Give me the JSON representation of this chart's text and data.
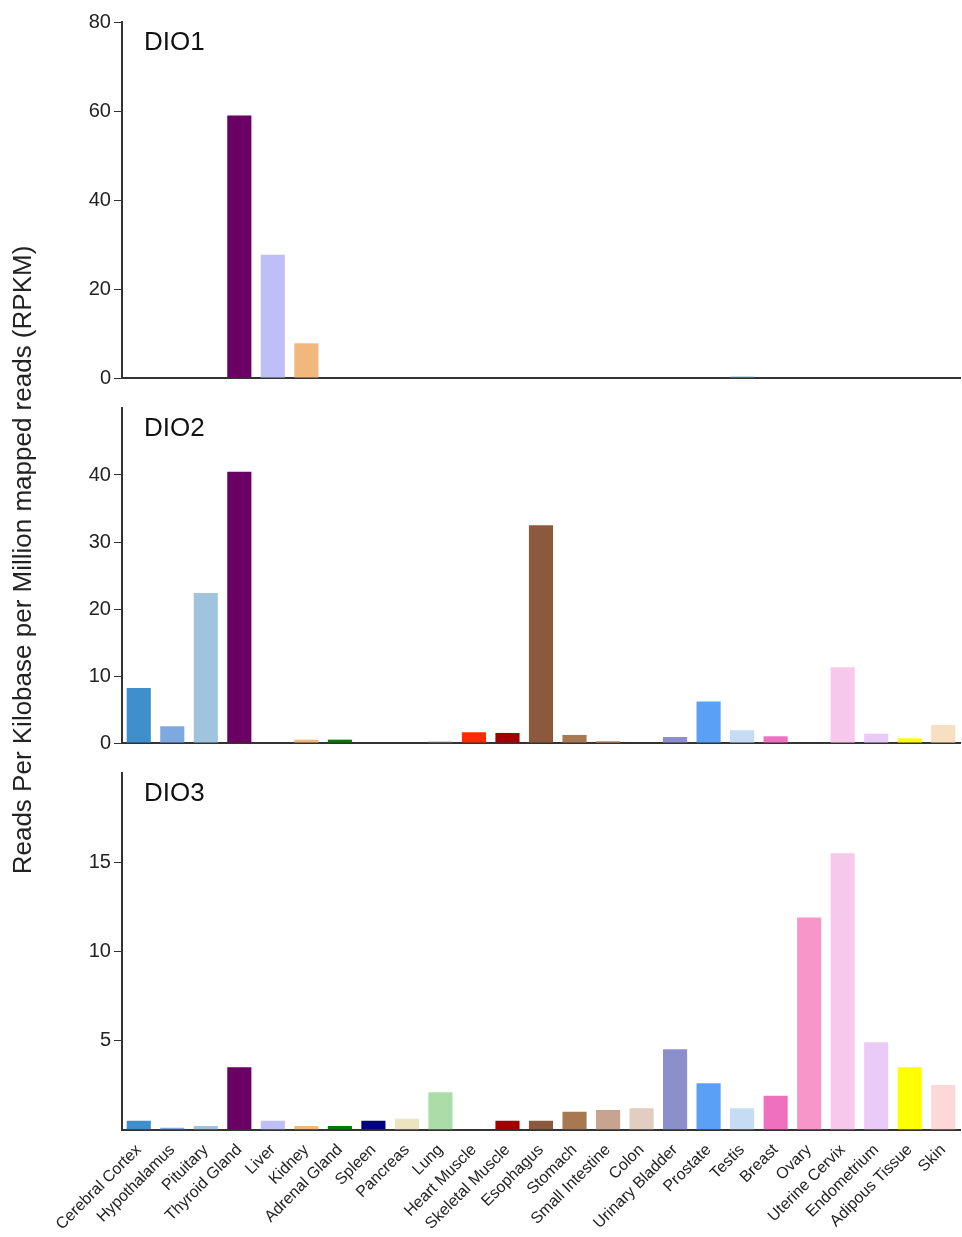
{
  "chart_data": [
    {
      "type": "bar",
      "title": "DIO1",
      "categories": [
        "Cerebral Cortex",
        "Hypothalamus",
        "Pituitary",
        "Thyroid Gland",
        "Liver",
        "Kidney",
        "Adrenal Gland",
        "Spleen",
        "Pancreas",
        "Lung",
        "Heart Muscle",
        "Skeletal Muscle",
        "Esophagus",
        "Stomach",
        "Small Intestine",
        "Colon",
        "Urinary Bladder",
        "Prostate",
        "Testis",
        "Breast",
        "Ovary",
        "Uterine Cervix",
        "Endometrium",
        "Adipous Tissue",
        "Skin"
      ],
      "values": [
        0,
        0,
        0,
        59,
        27.7,
        7.8,
        0,
        0,
        0,
        0,
        0,
        0,
        0,
        0,
        0,
        0,
        0,
        0,
        0.3,
        0.2,
        0,
        0,
        0,
        0,
        0
      ],
      "colors": [
        "#3f8fcc",
        "#7ea9e0",
        "#a0c4de",
        "#6a0064",
        "#bfbff7",
        "#f0b87c",
        "#007a00",
        "#000080",
        "#ece4c0",
        "#acdca8",
        "#ff2a00",
        "#a00000",
        "#8b5a3c",
        "#a87850",
        "#c8a490",
        "#e2cec0",
        "#8c8fcc",
        "#5aa0f7",
        "#5a90d0",
        "#303030",
        "#f796c8",
        "#f8c8ec",
        "#eccaf7",
        "#ffff00",
        "#f7dfc0"
      ],
      "ylim": [
        0,
        80
      ],
      "yticks": [
        0,
        20,
        40,
        60,
        80
      ],
      "tick_labels": "y"
    },
    {
      "type": "bar",
      "title": "DIO2",
      "ylabel": "Reads Per Kilobase per Million mapped reads (RPKM)",
      "categories": [
        "Cerebral Cortex",
        "Hypothalamus",
        "Pituitary",
        "Thyroid Gland",
        "Liver",
        "Kidney",
        "Adrenal Gland",
        "Spleen",
        "Pancreas",
        "Lung",
        "Heart Muscle",
        "Skeletal Muscle",
        "Esophagus",
        "Stomach",
        "Small Intestine",
        "Colon",
        "Urinary Bladder",
        "Prostate",
        "Testis",
        "Breast",
        "Ovary",
        "Uterine Cervix",
        "Endometrium",
        "Adipous Tissue",
        "Skin"
      ],
      "values": [
        8.2,
        2.5,
        22.4,
        40.5,
        0,
        0.5,
        0.5,
        0,
        0,
        0.2,
        1.6,
        1.5,
        32.5,
        1.2,
        0.3,
        null,
        0.9,
        6.2,
        1.9,
        1.0,
        0,
        11.3,
        1.4,
        0.7,
        2.7
      ],
      "colors": [
        "#3f8fcc",
        "#7ea9e0",
        "#a0c4de",
        "#6a0064",
        "#bfbff7",
        "#f0b87c",
        "#007a00",
        "#000080",
        "#ece4c0",
        "#808080",
        "#ff2a00",
        "#a00000",
        "#8b5a3c",
        "#a87850",
        "#c8a490",
        "#e2cec0",
        "#8c8fcc",
        "#5aa0f7",
        "#c6dcf5",
        "#f070c0",
        "#f796c8",
        "#f8c8ec",
        "#eccaf7",
        "#ffff00",
        "#f7dfc0"
      ],
      "ylim": [
        0,
        50
      ],
      "yticks": [
        0,
        10,
        20,
        30,
        40
      ],
      "tick_labels": "y"
    },
    {
      "type": "bar",
      "title": "DIO3",
      "categories": [
        "Cerebral Cortex",
        "Hypothalamus",
        "Pituitary",
        "Thyroid Gland",
        "Liver",
        "Kidney",
        "Adrenal Gland",
        "Spleen",
        "Pancreas",
        "Lung",
        "Heart Muscle",
        "Skeletal Muscle",
        "Esophagus",
        "Stomach",
        "Small Intestine",
        "Colon",
        "Urinary Bladder",
        "Prostate",
        "Testis",
        "Breast",
        "Ovary",
        "Uterine Cervix",
        "Endometrium",
        "Adipous Tissue",
        "Skin"
      ],
      "values": [
        0.5,
        0.1,
        0.2,
        3.5,
        0.5,
        0.2,
        0.2,
        0.5,
        0.6,
        2.1,
        0,
        0.5,
        0.5,
        1.0,
        1.1,
        1.2,
        4.5,
        2.6,
        1.2,
        1.9,
        11.9,
        15.5,
        4.9,
        3.5,
        2.5
      ],
      "colors": [
        "#3f8fcc",
        "#7ea9e0",
        "#a0c4de",
        "#6a0064",
        "#bfbff7",
        "#f0b87c",
        "#007a00",
        "#000080",
        "#ece4c0",
        "#acdca8",
        "#ff2a00",
        "#a00000",
        "#8b5a3c",
        "#a87850",
        "#c8a490",
        "#e2cec0",
        "#8c8fcc",
        "#5aa0f7",
        "#c6dcf5",
        "#f070c0",
        "#f796c8",
        "#f8c8ec",
        "#eccaf7",
        "#ffff00",
        "#fcd8d8"
      ],
      "ylim": [
        0,
        20
      ],
      "yticks": [
        5,
        10,
        15
      ]
    }
  ]
}
